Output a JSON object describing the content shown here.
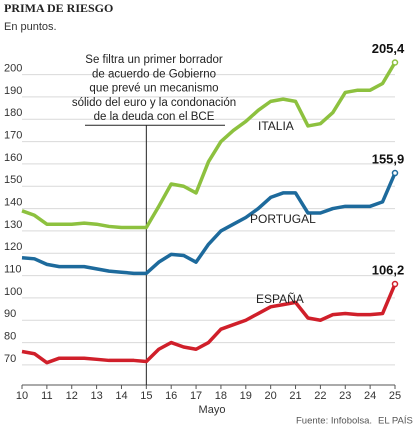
{
  "chart_data": {
    "type": "line",
    "title": "PRIMA DE RIESGO",
    "subtitle": "En puntos.",
    "x_label": "Mayo",
    "source": "Fuente: Infobolsa.",
    "publisher": "EL PAÍS",
    "annotation": {
      "x": 15,
      "lines": [
        "Se filtra un primer borrador",
        "de acuerdo de Gobierno",
        "que prevé un mecanismo",
        "sólido del euro y la condonación",
        "de la deuda con el BCE"
      ]
    },
    "x": [
      10,
      10.5,
      11,
      11.5,
      12,
      12.5,
      13,
      13.5,
      14,
      14.5,
      15,
      15.5,
      16,
      16.5,
      17,
      17.5,
      18,
      18.5,
      19,
      19.5,
      20,
      20.5,
      21,
      21.5,
      22,
      22.5,
      23,
      23.5,
      24,
      24.5,
      25
    ],
    "xlim": [
      10,
      25
    ],
    "xticks": [
      10,
      11,
      12,
      13,
      14,
      15,
      16,
      17,
      18,
      19,
      20,
      21,
      22,
      23,
      24,
      25
    ],
    "ylim": [
      61,
      211
    ],
    "yticks": [
      70,
      80,
      90,
      100,
      110,
      120,
      130,
      140,
      150,
      160,
      170,
      180,
      190,
      200
    ],
    "grid": true,
    "series": [
      {
        "name": "ITALIA",
        "color": "#8dc13f",
        "values": [
          139,
          137,
          133,
          133,
          133,
          133.5,
          133,
          132,
          131.5,
          131.5,
          131.5,
          141,
          151,
          150,
          147,
          161,
          170,
          175,
          179,
          184,
          188,
          189,
          188,
          177,
          178,
          183,
          192,
          193,
          193,
          196,
          205.4
        ],
        "value_labels": {
          "30": "205,4"
        }
      },
      {
        "name": "PORTUGAL",
        "color": "#1d6a9c",
        "values": [
          118,
          117.5,
          115,
          114,
          114,
          114,
          113,
          112,
          111.5,
          111,
          111,
          116,
          119.5,
          119,
          116,
          124,
          130,
          133,
          136,
          140,
          145,
          147,
          147,
          138,
          138,
          140,
          141,
          141,
          141,
          143,
          155.9
        ],
        "value_labels": {
          "30": "155,9"
        }
      },
      {
        "name": "ESPAÑA",
        "color": "#d01f2a",
        "values": [
          76,
          75,
          71,
          73,
          73,
          73,
          72.5,
          72,
          72,
          72,
          71.5,
          77,
          80,
          78,
          77,
          80,
          86,
          88,
          90,
          93,
          96,
          97,
          98,
          91,
          90,
          92.5,
          93,
          92.5,
          92.5,
          93,
          106.2
        ],
        "value_labels": {
          "30": "106,2"
        }
      }
    ]
  }
}
